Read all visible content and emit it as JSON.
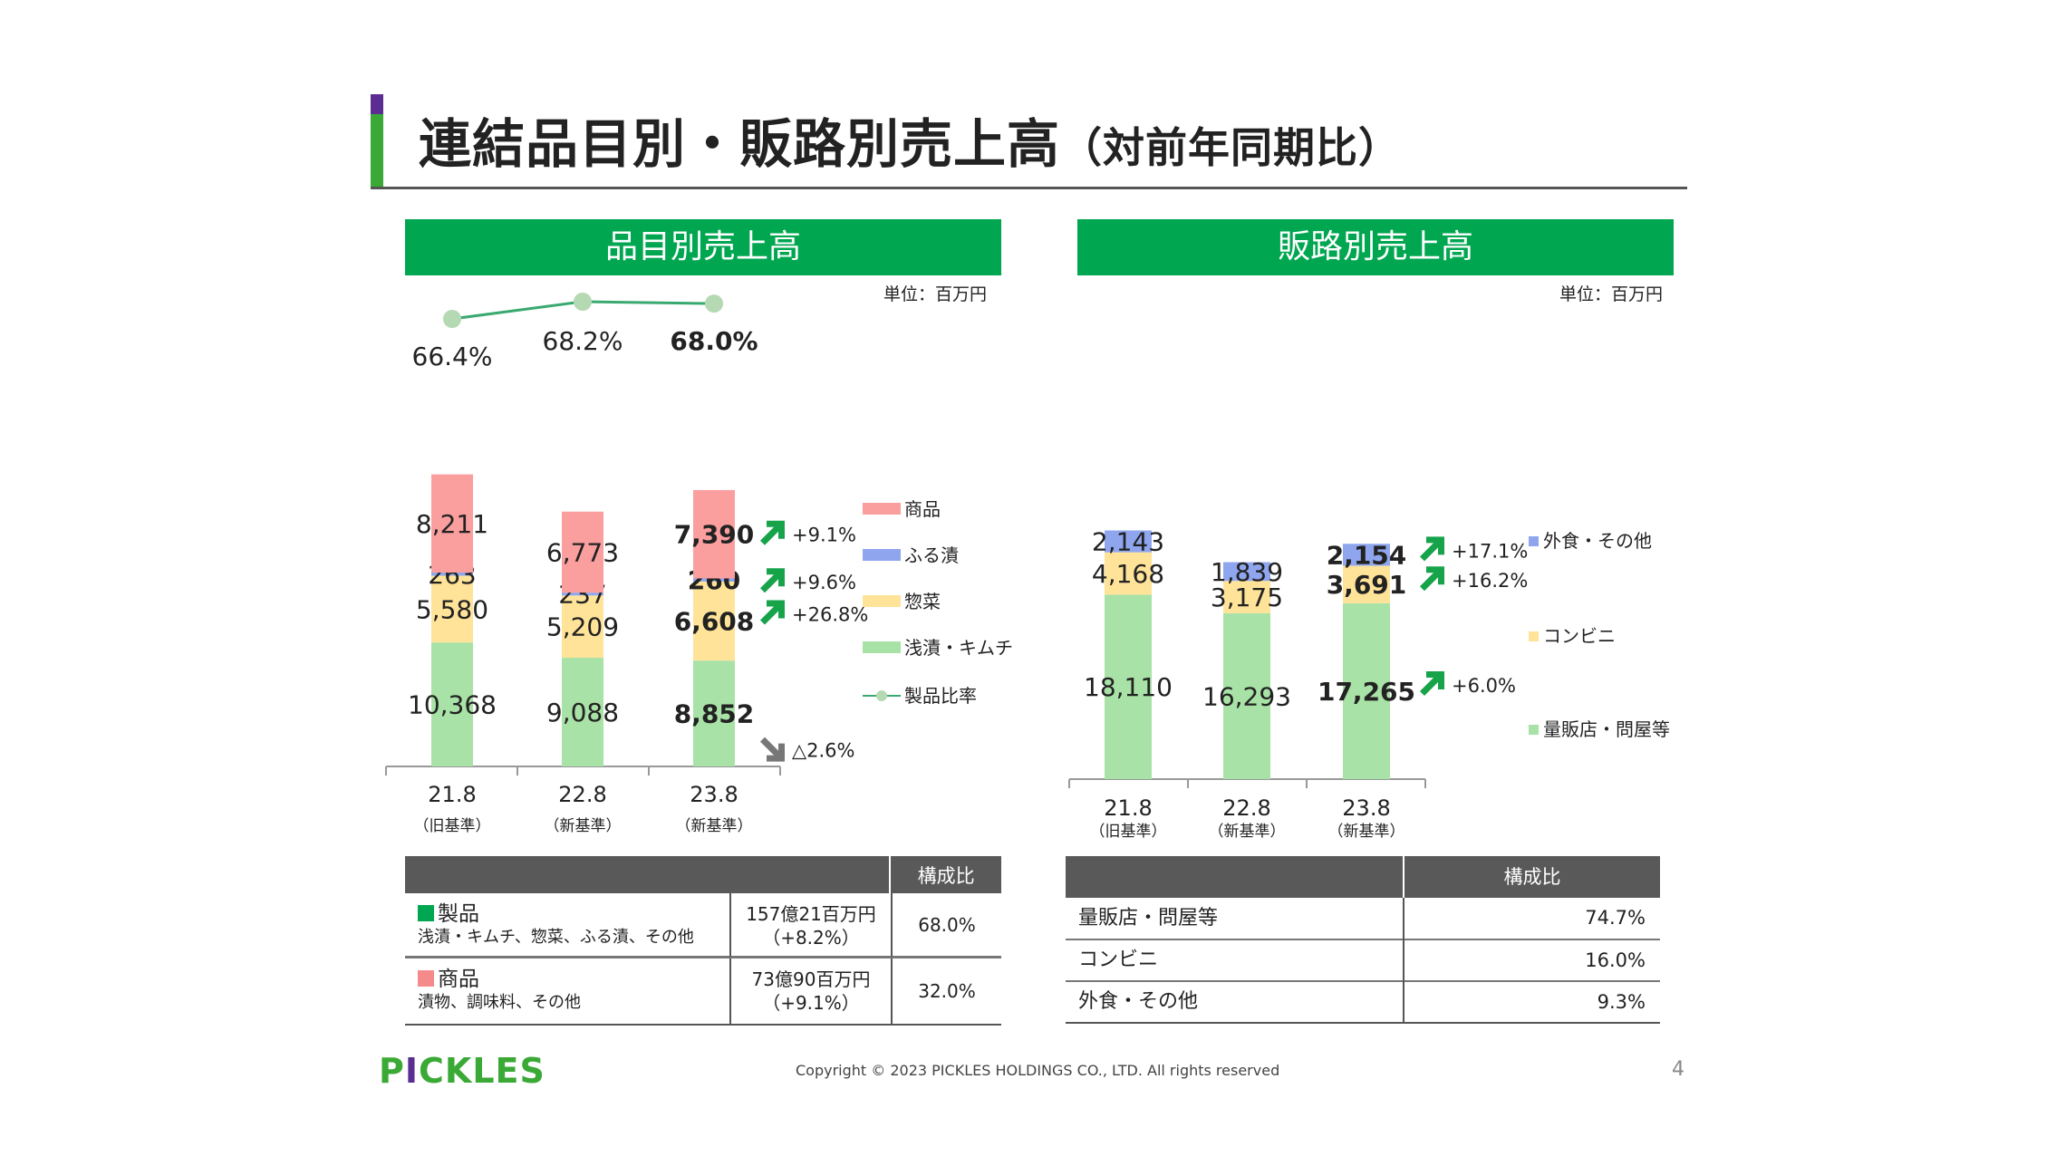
{
  "slide": {
    "title": "連結品目別・販路別売上高",
    "title_suffix": "（対前年同期比）",
    "copyright": "Copyright © 2023 PICKLES HOLDINGS CO., LTD. All rights reserved",
    "page_number": "4",
    "logo_text_1": "P",
    "logo_text_i": "I",
    "logo_text_2": "CKLES"
  },
  "left_section": {
    "header": "品目別売上高",
    "unit": "単位：百万円"
  },
  "right_section": {
    "header": "販路別売上高",
    "unit": "単位：百万円"
  },
  "colors": {
    "kimchi": "#a8e2a6",
    "souzai": "#ffe399",
    "furuzuke": "#8fa6ee",
    "shohin": "#fa9e9e",
    "ratio_line": "#3aa970",
    "ratio_marker": "#b5d9b3",
    "up_arrow": "#16a34a",
    "down_arrow": "#777777",
    "header_green": "#00a650"
  },
  "chart_data": [
    {
      "type": "bar",
      "stacked": true,
      "unit": "単位：百万円",
      "categories": [
        "21.8",
        "22.8",
        "23.8"
      ],
      "category_sublabels": [
        "（旧基準）",
        "（新基準）",
        "（新基準）"
      ],
      "series": [
        {
          "name": "浅漬・キムチ",
          "values": [
            10368,
            9088,
            8852
          ],
          "labels": [
            "10,368",
            "9,088",
            "8,852"
          ]
        },
        {
          "name": "惣菜",
          "values": [
            5580,
            5209,
            6608
          ],
          "labels": [
            "5,580",
            "5,209",
            "6,608"
          ]
        },
        {
          "name": "ふる漬",
          "values": [
            263,
            237,
            260
          ],
          "labels": [
            "263",
            "237",
            "260"
          ]
        },
        {
          "name": "商品",
          "values": [
            8211,
            6773,
            7390
          ],
          "labels": [
            "8,211",
            "6,773",
            "7,390"
          ]
        }
      ],
      "line_series": {
        "name": "製品比率",
        "values": [
          66.4,
          68.2,
          68.0
        ],
        "labels": [
          "66.4%",
          "68.2%",
          "68.0%"
        ]
      },
      "yoy_changes": [
        {
          "series": "商品",
          "text": "+9.1%",
          "direction": "up"
        },
        {
          "series": "ふる漬",
          "text": "+9.6%",
          "direction": "up"
        },
        {
          "series": "惣菜",
          "text": "+26.8%",
          "direction": "up"
        },
        {
          "series": "浅漬・キムチ",
          "text": "△2.6%",
          "direction": "down"
        }
      ],
      "legend": [
        "商品",
        "ふる漬",
        "惣菜",
        "浅漬・キムチ",
        "製品比率"
      ]
    },
    {
      "type": "bar",
      "stacked": true,
      "unit": "単位：百万円",
      "categories": [
        "21.8",
        "22.8",
        "23.8"
      ],
      "category_sublabels": [
        "（旧基準）",
        "（新基準）",
        "（新基準）"
      ],
      "series": [
        {
          "name": "量販店・問屋等",
          "values": [
            18110,
            16293,
            17265
          ],
          "labels": [
            "18,110",
            "16,293",
            "17,265"
          ]
        },
        {
          "name": "コンビニ",
          "values": [
            4168,
            3175,
            3691
          ],
          "labels": [
            "4,168",
            "3,175",
            "3,691"
          ]
        },
        {
          "name": "外食・その他",
          "values": [
            2143,
            1839,
            2154
          ],
          "labels": [
            "2,143",
            "1,839",
            "2,154"
          ]
        }
      ],
      "yoy_changes": [
        {
          "series": "外食・その他",
          "text": "+17.1%",
          "direction": "up"
        },
        {
          "series": "コンビニ",
          "text": "+16.2%",
          "direction": "up"
        },
        {
          "series": "量販店・問屋等",
          "text": "+6.0%",
          "direction": "up"
        }
      ],
      "legend": [
        "外食・その他",
        "コンビニ",
        "量販店・問屋等"
      ]
    }
  ],
  "left_table": {
    "header": "構成比",
    "rows": [
      {
        "name": "製品",
        "detail": "浅漬・キムチ、惣菜、ふる漬、その他",
        "amount": "157億21百万円",
        "change": "（+8.2%）",
        "ratio": "68.0%",
        "marker_color": "#00a650"
      },
      {
        "name": "商品",
        "detail": "漬物、調味料、その他",
        "amount": "73億90百万円",
        "change": "（+9.1%）",
        "ratio": "32.0%",
        "marker_color": "#f48a8a"
      }
    ]
  },
  "right_table": {
    "header": "構成比",
    "rows": [
      {
        "name": "量販店・問屋等",
        "ratio": "74.7%"
      },
      {
        "name": "コンビニ",
        "ratio": "16.0%"
      },
      {
        "name": "外食・その他",
        "ratio": "9.3%"
      }
    ]
  }
}
